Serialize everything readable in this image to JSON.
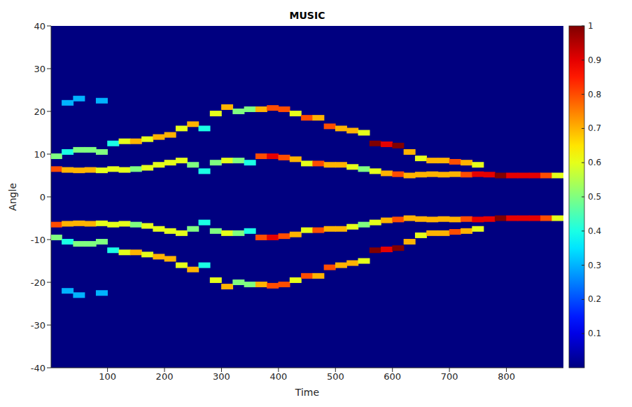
{
  "chart_data": {
    "type": "heatmap",
    "title": "MUSIC",
    "x_label": "Time",
    "y_label": "Angle",
    "xlim": [
      1,
      900
    ],
    "xticks": [
      100,
      200,
      300,
      400,
      500,
      600,
      700,
      800
    ],
    "ylim": [
      -40,
      40
    ],
    "yticks": [
      -40,
      -30,
      -20,
      -10,
      0,
      10,
      20,
      30,
      40
    ],
    "grid": false,
    "colorbar": {
      "lim": [
        0,
        1
      ],
      "ticks": [
        0.1,
        0.2,
        0.3,
        0.4,
        0.5,
        0.6,
        0.7,
        0.8,
        0.9,
        1
      ]
    },
    "cells": [
      [
        10,
        6.5,
        0.8
      ],
      [
        30,
        6.3,
        0.7
      ],
      [
        50,
        6.2,
        0.7
      ],
      [
        70,
        6.3,
        0.7
      ],
      [
        90,
        6.2,
        0.6
      ],
      [
        110,
        6.5,
        0.6
      ],
      [
        130,
        6.3,
        0.6
      ],
      [
        150,
        6.5,
        0.5
      ],
      [
        170,
        6.8,
        0.6
      ],
      [
        190,
        7.5,
        0.6
      ],
      [
        210,
        8.0,
        0.6
      ],
      [
        230,
        8.5,
        0.6
      ],
      [
        250,
        7.5,
        0.5
      ],
      [
        270,
        6.0,
        0.4
      ],
      [
        290,
        8.0,
        0.5
      ],
      [
        310,
        8.5,
        0.6
      ],
      [
        330,
        8.5,
        0.5
      ],
      [
        350,
        8.0,
        0.4
      ],
      [
        370,
        9.5,
        0.8
      ],
      [
        390,
        9.5,
        0.9
      ],
      [
        410,
        9.2,
        0.8
      ],
      [
        430,
        8.8,
        0.7
      ],
      [
        450,
        7.8,
        0.6
      ],
      [
        470,
        7.8,
        0.8
      ],
      [
        490,
        7.5,
        0.7
      ],
      [
        510,
        7.5,
        0.7
      ],
      [
        530,
        7.0,
        0.6
      ],
      [
        550,
        6.5,
        0.5
      ],
      [
        570,
        6.0,
        0.6
      ],
      [
        590,
        5.5,
        0.7
      ],
      [
        610,
        5.3,
        0.8
      ],
      [
        630,
        5.0,
        0.7
      ],
      [
        650,
        5.2,
        0.7
      ],
      [
        670,
        5.3,
        0.7
      ],
      [
        690,
        5.2,
        0.7
      ],
      [
        710,
        5.3,
        0.7
      ],
      [
        730,
        5.2,
        0.8
      ],
      [
        750,
        5.3,
        0.9
      ],
      [
        770,
        5.2,
        0.9
      ],
      [
        790,
        5.0,
        1.0
      ],
      [
        810,
        5.0,
        0.9
      ],
      [
        830,
        5.0,
        0.9
      ],
      [
        850,
        5.0,
        0.9
      ],
      [
        870,
        5.0,
        0.8
      ],
      [
        890,
        5.0,
        0.6
      ],
      [
        10,
        9.5,
        0.5
      ],
      [
        30,
        10.5,
        0.4
      ],
      [
        50,
        11,
        0.5
      ],
      [
        70,
        11,
        0.5
      ],
      [
        90,
        10.5,
        0.5
      ],
      [
        110,
        12.5,
        0.4
      ],
      [
        130,
        13,
        0.6
      ],
      [
        150,
        13,
        0.7
      ],
      [
        170,
        13.5,
        0.6
      ],
      [
        190,
        14,
        0.7
      ],
      [
        210,
        14.5,
        0.7
      ],
      [
        230,
        16,
        0.6
      ],
      [
        250,
        17,
        0.7
      ],
      [
        270,
        16,
        0.4
      ],
      [
        290,
        19.5,
        0.6
      ],
      [
        310,
        21,
        0.7
      ],
      [
        330,
        20,
        0.5
      ],
      [
        350,
        20.5,
        0.5
      ],
      [
        370,
        20.5,
        0.7
      ],
      [
        390,
        20.8,
        0.8
      ],
      [
        410,
        20.5,
        0.8
      ],
      [
        430,
        19.5,
        0.6
      ],
      [
        450,
        18.5,
        0.8
      ],
      [
        470,
        18.5,
        0.7
      ],
      [
        490,
        16.5,
        0.8
      ],
      [
        510,
        16,
        0.7
      ],
      [
        530,
        15.5,
        0.7
      ],
      [
        550,
        15,
        0.6
      ],
      [
        570,
        12.5,
        1.0
      ],
      [
        590,
        12.3,
        0.9
      ],
      [
        610,
        12,
        1.0
      ],
      [
        630,
        10.5,
        0.7
      ],
      [
        650,
        9,
        0.6
      ],
      [
        670,
        8.5,
        0.7
      ],
      [
        690,
        8.5,
        0.7
      ],
      [
        710,
        8.2,
        0.8
      ],
      [
        730,
        8,
        0.7
      ],
      [
        750,
        7.5,
        0.6
      ],
      [
        30,
        22,
        0.3
      ],
      [
        50,
        23,
        0.3
      ],
      [
        90,
        22.5,
        0.3
      ],
      [
        10,
        -6.5,
        0.8
      ],
      [
        30,
        -6.3,
        0.7
      ],
      [
        50,
        -6.2,
        0.7
      ],
      [
        70,
        -6.3,
        0.7
      ],
      [
        90,
        -6.2,
        0.6
      ],
      [
        110,
        -6.5,
        0.6
      ],
      [
        130,
        -6.3,
        0.6
      ],
      [
        150,
        -6.5,
        0.5
      ],
      [
        170,
        -6.8,
        0.6
      ],
      [
        190,
        -7.5,
        0.6
      ],
      [
        210,
        -8.0,
        0.6
      ],
      [
        230,
        -8.5,
        0.6
      ],
      [
        250,
        -7.5,
        0.5
      ],
      [
        270,
        -6.0,
        0.4
      ],
      [
        290,
        -8.0,
        0.5
      ],
      [
        310,
        -8.5,
        0.6
      ],
      [
        330,
        -8.5,
        0.5
      ],
      [
        350,
        -8.0,
        0.4
      ],
      [
        370,
        -9.5,
        0.8
      ],
      [
        390,
        -9.5,
        0.9
      ],
      [
        410,
        -9.2,
        0.8
      ],
      [
        430,
        -8.8,
        0.7
      ],
      [
        450,
        -7.8,
        0.6
      ],
      [
        470,
        -7.8,
        0.8
      ],
      [
        490,
        -7.5,
        0.7
      ],
      [
        510,
        -7.5,
        0.7
      ],
      [
        530,
        -7.0,
        0.6
      ],
      [
        550,
        -6.5,
        0.5
      ],
      [
        570,
        -6.0,
        0.6
      ],
      [
        590,
        -5.5,
        0.7
      ],
      [
        610,
        -5.3,
        0.8
      ],
      [
        630,
        -5.0,
        0.7
      ],
      [
        650,
        -5.2,
        0.7
      ],
      [
        670,
        -5.3,
        0.7
      ],
      [
        690,
        -5.2,
        0.7
      ],
      [
        710,
        -5.3,
        0.7
      ],
      [
        730,
        -5.2,
        0.8
      ],
      [
        750,
        -5.3,
        0.9
      ],
      [
        770,
        -5.2,
        0.9
      ],
      [
        790,
        -5.0,
        1.0
      ],
      [
        810,
        -5.0,
        0.9
      ],
      [
        830,
        -5.0,
        0.9
      ],
      [
        850,
        -5.0,
        0.9
      ],
      [
        870,
        -5.0,
        0.8
      ],
      [
        890,
        -5.0,
        0.6
      ],
      [
        10,
        -9.5,
        0.5
      ],
      [
        30,
        -10.5,
        0.4
      ],
      [
        50,
        -11,
        0.5
      ],
      [
        70,
        -11,
        0.5
      ],
      [
        90,
        -10.5,
        0.5
      ],
      [
        110,
        -12.5,
        0.4
      ],
      [
        130,
        -13,
        0.6
      ],
      [
        150,
        -13,
        0.7
      ],
      [
        170,
        -13.5,
        0.6
      ],
      [
        190,
        -14,
        0.7
      ],
      [
        210,
        -14.5,
        0.7
      ],
      [
        230,
        -16,
        0.6
      ],
      [
        250,
        -17,
        0.7
      ],
      [
        270,
        -16,
        0.4
      ],
      [
        290,
        -19.5,
        0.6
      ],
      [
        310,
        -21,
        0.7
      ],
      [
        330,
        -20,
        0.5
      ],
      [
        350,
        -20.5,
        0.5
      ],
      [
        370,
        -20.5,
        0.7
      ],
      [
        390,
        -20.8,
        0.8
      ],
      [
        410,
        -20.5,
        0.8
      ],
      [
        430,
        -19.5,
        0.6
      ],
      [
        450,
        -18.5,
        0.8
      ],
      [
        470,
        -18.5,
        0.7
      ],
      [
        490,
        -16.5,
        0.8
      ],
      [
        510,
        -16,
        0.7
      ],
      [
        530,
        -15.5,
        0.7
      ],
      [
        550,
        -15,
        0.6
      ],
      [
        570,
        -12.5,
        1.0
      ],
      [
        590,
        -12.3,
        0.9
      ],
      [
        610,
        -12,
        1.0
      ],
      [
        630,
        -10.5,
        0.7
      ],
      [
        650,
        -9,
        0.6
      ],
      [
        670,
        -8.5,
        0.7
      ],
      [
        690,
        -8.5,
        0.7
      ],
      [
        710,
        -8.2,
        0.8
      ],
      [
        730,
        -8,
        0.7
      ],
      [
        750,
        -7.5,
        0.6
      ],
      [
        30,
        -22,
        0.3
      ],
      [
        50,
        -23,
        0.3
      ],
      [
        90,
        -22.5,
        0.3
      ]
    ]
  }
}
